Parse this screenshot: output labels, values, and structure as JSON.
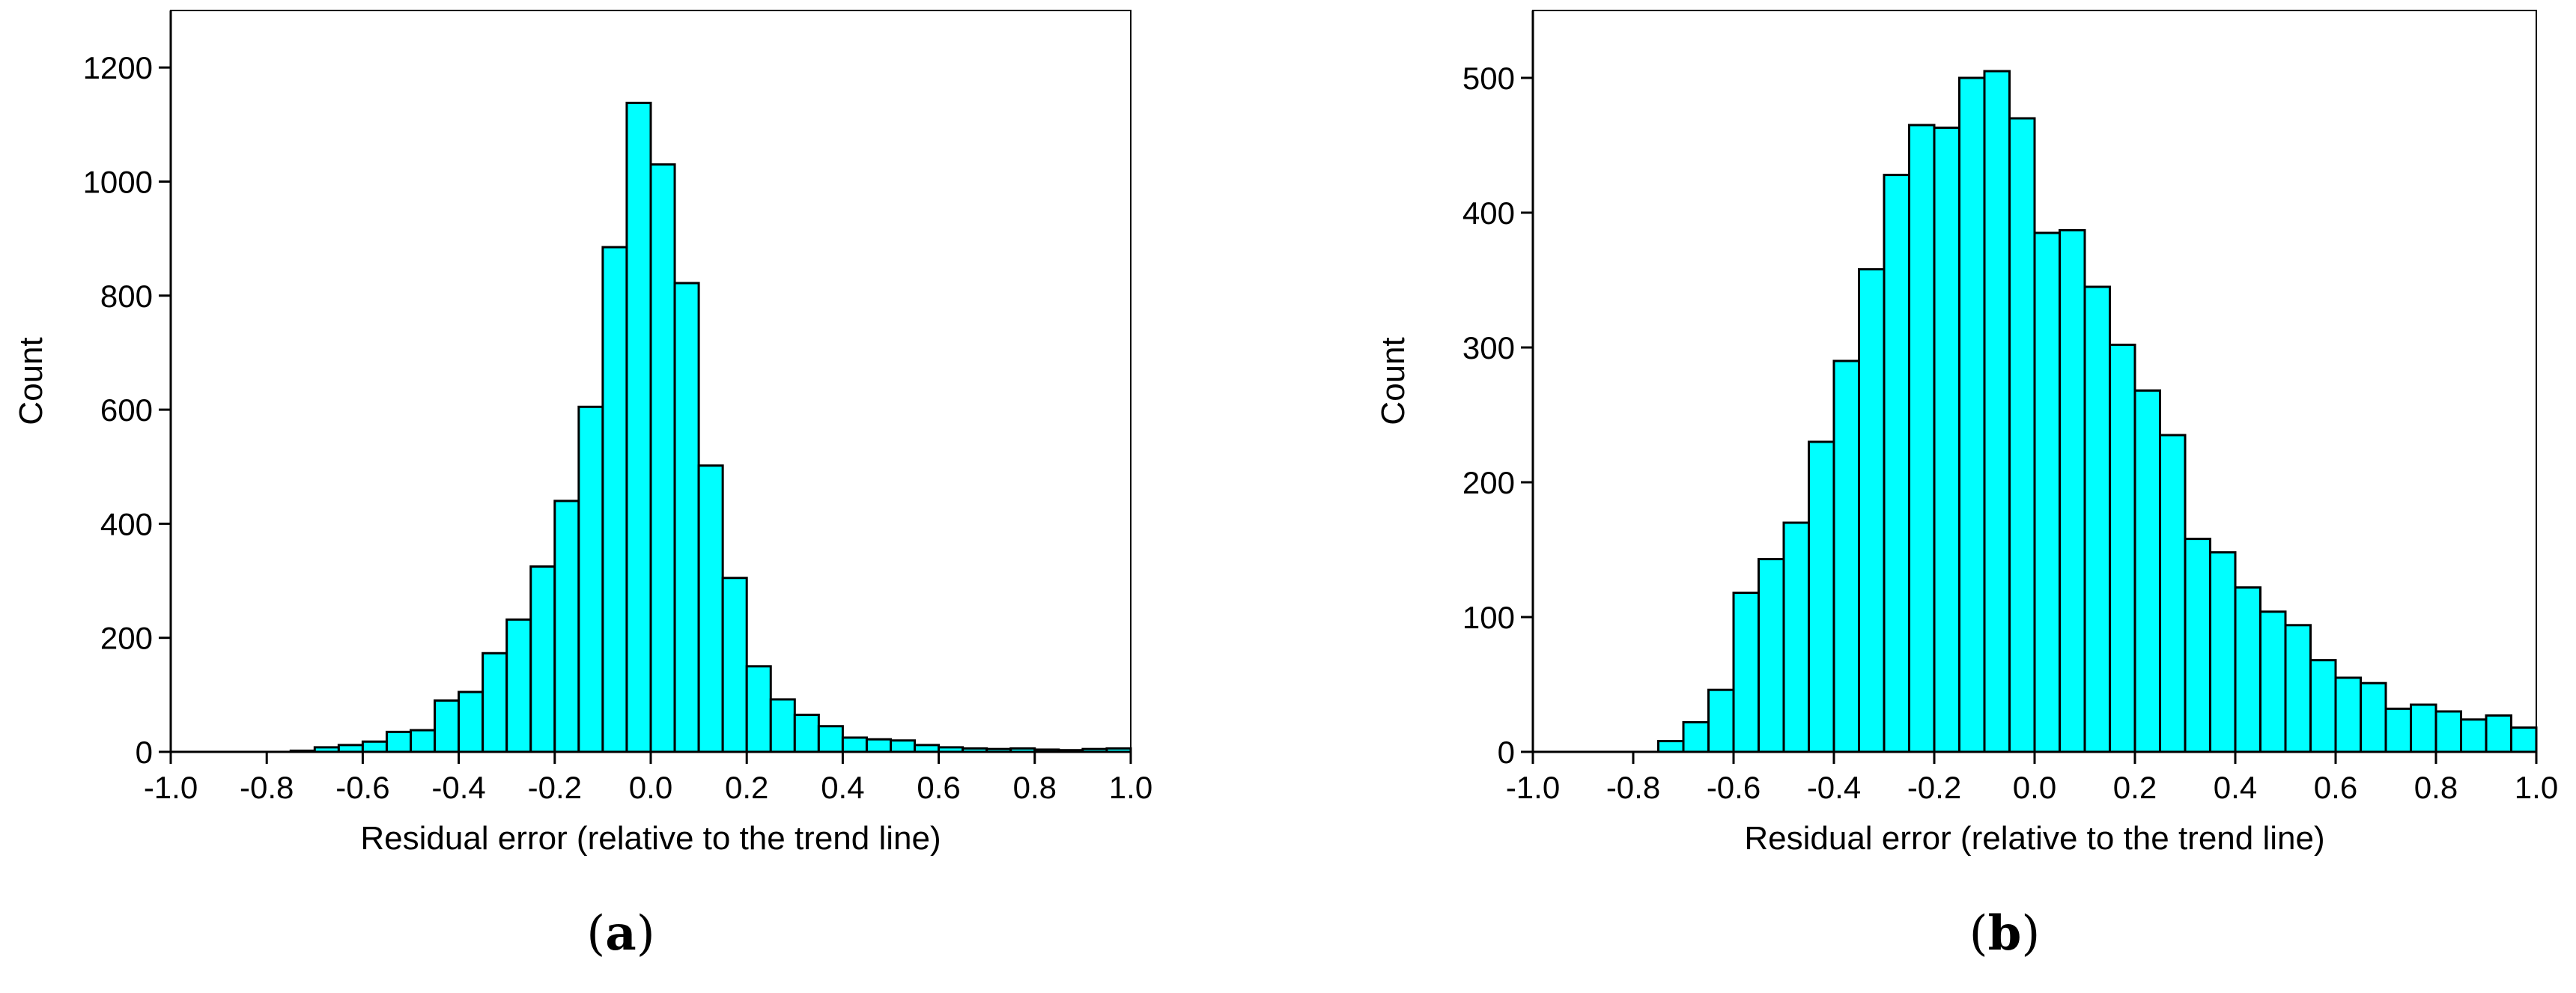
{
  "chart_data": [
    {
      "type": "bar",
      "panel_label": "(a)",
      "xlabel": "Residual error (relative to the trend line)",
      "ylabel": "Count",
      "xlim": [
        -1.0,
        1.0
      ],
      "ylim": [
        0,
        1300
      ],
      "x_ticks": [
        "-1.0",
        "-0.8",
        "-0.6",
        "-0.4",
        "-0.2",
        "0.0",
        "0.2",
        "0.4",
        "0.6",
        "0.8",
        "1.0"
      ],
      "y_ticks": [
        "0",
        "200",
        "400",
        "600",
        "800",
        "1000",
        "1200"
      ],
      "bin_width": 0.05,
      "bin_starts": [
        -1.0,
        -0.95,
        -0.9,
        -0.85,
        -0.8,
        -0.75,
        -0.7,
        -0.65,
        -0.6,
        -0.55,
        -0.5,
        -0.45,
        -0.4,
        -0.35,
        -0.3,
        -0.25,
        -0.2,
        -0.15,
        -0.1,
        -0.05,
        0.0,
        0.05,
        0.1,
        0.15,
        0.2,
        0.25,
        0.3,
        0.35,
        0.4,
        0.45,
        0.5,
        0.55,
        0.6,
        0.65,
        0.7,
        0.75,
        0.8,
        0.85,
        0.9,
        0.95
      ],
      "values": [
        0,
        0,
        0,
        0,
        0,
        2,
        8,
        12,
        18,
        35,
        38,
        90,
        105,
        173,
        232,
        325,
        440,
        605,
        885,
        1138,
        1030,
        822,
        502,
        305,
        150,
        92,
        65,
        45,
        25,
        22,
        20,
        12,
        8,
        6,
        5,
        6,
        4,
        3,
        5,
        6
      ],
      "grid": false,
      "bar_color": "#00ffff"
    },
    {
      "type": "bar",
      "panel_label": "(b)",
      "xlabel": "Residual error (relative to the trend line)",
      "ylabel": "Count",
      "xlim": [
        -1.0,
        1.0
      ],
      "ylim": [
        0,
        550
      ],
      "x_ticks": [
        "-1.0",
        "-0.8",
        "-0.6",
        "-0.4",
        "-0.2",
        "0.0",
        "0.2",
        "0.4",
        "0.6",
        "0.8",
        "1.0"
      ],
      "y_ticks": [
        "0",
        "100",
        "200",
        "300",
        "400",
        "500"
      ],
      "bin_width": 0.05,
      "bin_starts": [
        -1.0,
        -0.95,
        -0.9,
        -0.85,
        -0.8,
        -0.75,
        -0.7,
        -0.65,
        -0.6,
        -0.55,
        -0.5,
        -0.45,
        -0.4,
        -0.35,
        -0.3,
        -0.25,
        -0.2,
        -0.15,
        -0.1,
        -0.05,
        0.0,
        0.05,
        0.1,
        0.15,
        0.2,
        0.25,
        0.3,
        0.35,
        0.4,
        0.45,
        0.5,
        0.55,
        0.6,
        0.65,
        0.7,
        0.75,
        0.8,
        0.85,
        0.9,
        0.95
      ],
      "values": [
        0,
        0,
        0,
        0,
        0,
        8,
        22,
        46,
        118,
        143,
        170,
        230,
        290,
        358,
        428,
        465,
        463,
        500,
        505,
        470,
        385,
        387,
        345,
        302,
        268,
        235,
        158,
        148,
        122,
        104,
        94,
        68,
        55,
        51,
        32,
        35,
        30,
        24,
        27,
        18
      ],
      "grid": false,
      "bar_color": "#00ffff"
    }
  ]
}
